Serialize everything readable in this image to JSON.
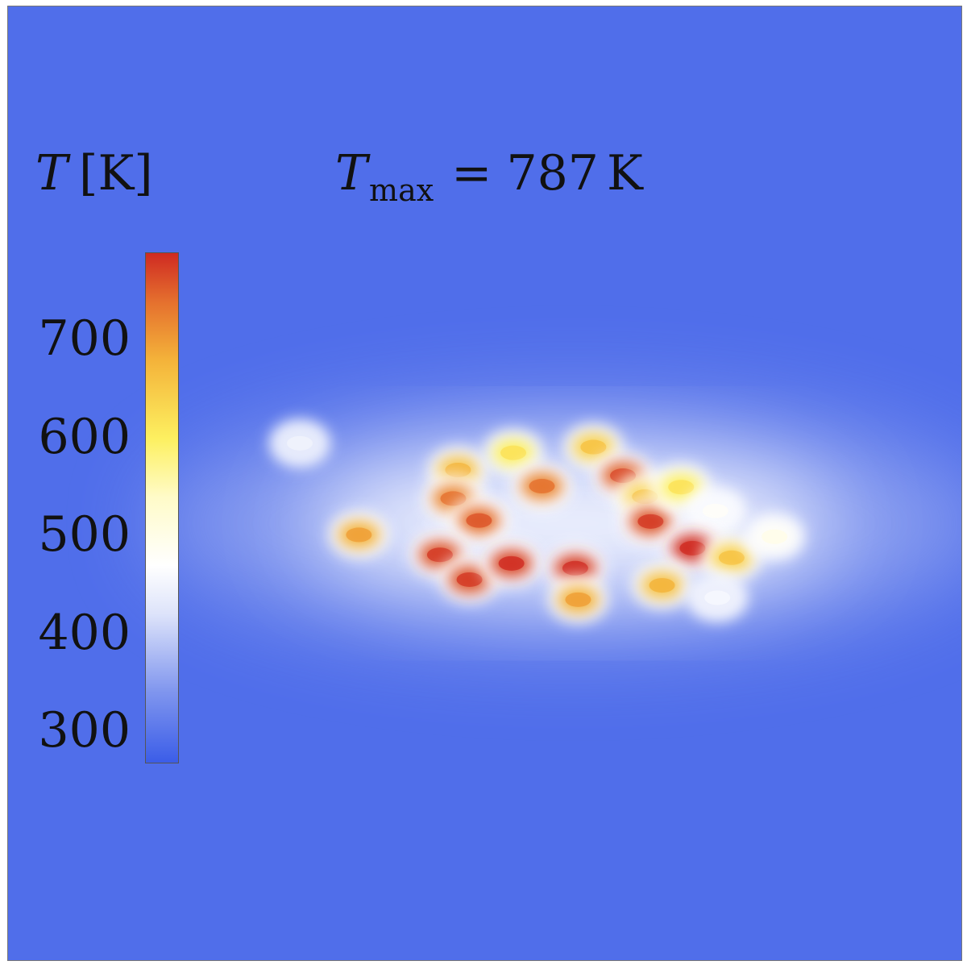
{
  "chart_data": {
    "type": "heatmap",
    "title": "",
    "colorbar": {
      "label_symbol": "T",
      "label_unit": "[K]",
      "range": [
        268,
        790
      ],
      "ticks": [
        300,
        400,
        500,
        600,
        700
      ],
      "tick_labels": [
        "300",
        "400",
        "500",
        "600",
        "700"
      ],
      "colormap": [
        {
          "value": 268,
          "color": "#3b5de8"
        },
        {
          "value": 340,
          "color": "#7f95ee"
        },
        {
          "value": 420,
          "color": "#dde3fa"
        },
        {
          "value": 470,
          "color": "#ffffff"
        },
        {
          "value": 540,
          "color": "#fffbc8"
        },
        {
          "value": 600,
          "color": "#fdf060"
        },
        {
          "value": 680,
          "color": "#f4b33a"
        },
        {
          "value": 740,
          "color": "#e5702e"
        },
        {
          "value": 790,
          "color": "#cf2a22"
        }
      ]
    },
    "annotation": {
      "symbol": "T",
      "subscript": "max",
      "equals": "=",
      "value": "787",
      "unit": "K"
    },
    "background_temperature": 290,
    "hotspots": [
      {
        "x": 0.306,
        "y": 0.458,
        "T": 430
      },
      {
        "x": 0.368,
        "y": 0.554,
        "T": 680
      },
      {
        "x": 0.472,
        "y": 0.486,
        "T": 660
      },
      {
        "x": 0.467,
        "y": 0.516,
        "T": 720
      },
      {
        "x": 0.494,
        "y": 0.539,
        "T": 740
      },
      {
        "x": 0.53,
        "y": 0.468,
        "T": 600
      },
      {
        "x": 0.56,
        "y": 0.503,
        "T": 720
      },
      {
        "x": 0.614,
        "y": 0.462,
        "T": 640
      },
      {
        "x": 0.645,
        "y": 0.492,
        "T": 750
      },
      {
        "x": 0.668,
        "y": 0.514,
        "T": 640
      },
      {
        "x": 0.674,
        "y": 0.54,
        "T": 760
      },
      {
        "x": 0.706,
        "y": 0.504,
        "T": 600
      },
      {
        "x": 0.742,
        "y": 0.529,
        "T": 460
      },
      {
        "x": 0.453,
        "y": 0.575,
        "T": 760
      },
      {
        "x": 0.484,
        "y": 0.601,
        "T": 760
      },
      {
        "x": 0.528,
        "y": 0.584,
        "T": 770
      },
      {
        "x": 0.595,
        "y": 0.589,
        "T": 775
      },
      {
        "x": 0.598,
        "y": 0.622,
        "T": 680
      },
      {
        "x": 0.718,
        "y": 0.568,
        "T": 787
      },
      {
        "x": 0.759,
        "y": 0.578,
        "T": 640
      },
      {
        "x": 0.686,
        "y": 0.607,
        "T": 660
      },
      {
        "x": 0.804,
        "y": 0.556,
        "T": 480
      },
      {
        "x": 0.744,
        "y": 0.62,
        "T": 440
      }
    ]
  }
}
